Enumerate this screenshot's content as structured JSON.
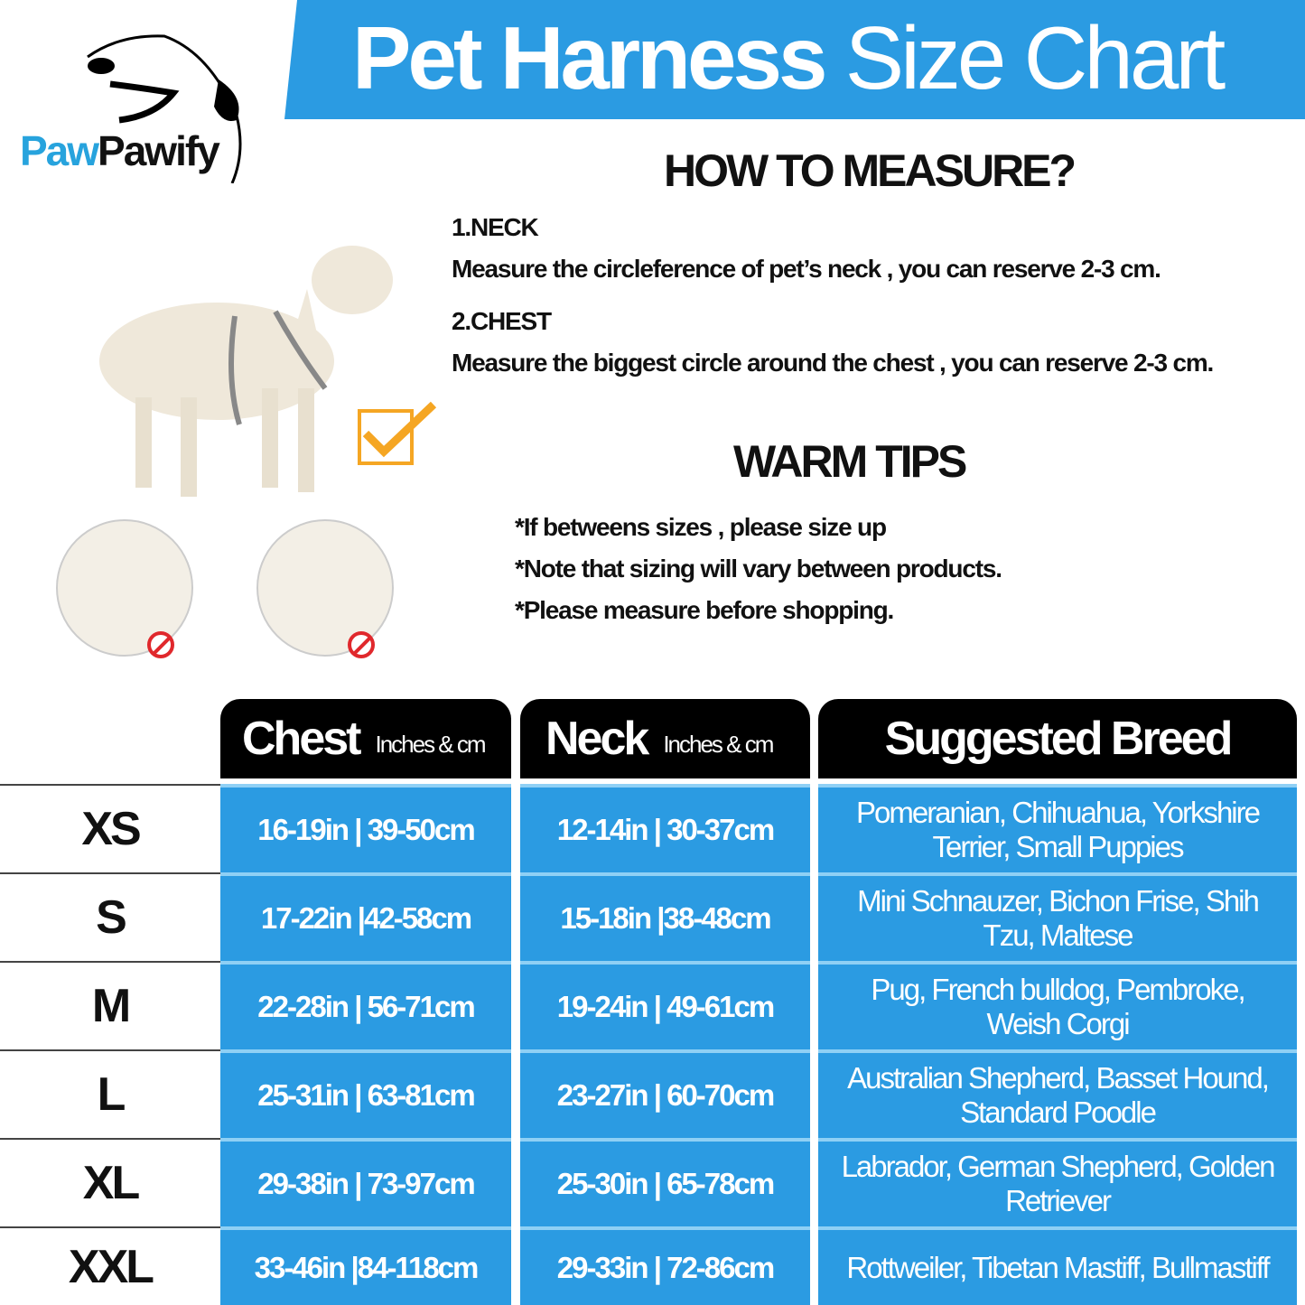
{
  "brand": {
    "logo_text_part1": "Paw",
    "logo_text_part2": "Pawify"
  },
  "title": {
    "bold": "Pet Harness",
    "light": "Size Chart"
  },
  "measure": {
    "heading": "HOW TO MEASURE?",
    "neck_label": "1.NECK",
    "neck_text": "Measure the circleference of pet’s neck , you can reserve 2-3 cm.",
    "chest_label": "2.CHEST",
    "chest_text": "Measure the biggest circle around the chest , you can reserve 2-3 cm."
  },
  "tips": {
    "heading": "WARM TIPS",
    "items": [
      "*If betweens sizes , please size up",
      "*Note that sizing will vary between products.",
      "*Please measure before shopping."
    ]
  },
  "colors": {
    "accent": "#2b9be2",
    "header": "#000000",
    "checkmark": "#f5a623",
    "prohibited": "#e0282c"
  },
  "table": {
    "headers": {
      "chest": "Chest",
      "chest_unit": "Inches & cm",
      "neck": "Neck",
      "neck_unit": "Inches & cm",
      "breed": "Suggested Breed"
    },
    "rows": [
      {
        "size": "XS",
        "chest": "16-19in | 39-50cm",
        "neck": "12-14in | 30-37cm",
        "breed": "Pomeranian, Chihuahua, Yorkshire Terrier, Small Puppies"
      },
      {
        "size": "S",
        "chest": "17-22in |42-58cm",
        "neck": "15-18in |38-48cm",
        "breed": "Mini Schnauzer, Bichon Frise, Shih Tzu, Maltese"
      },
      {
        "size": "M",
        "chest": "22-28in | 56-71cm",
        "neck": "19-24in | 49-61cm",
        "breed": "Pug, French bulldog, Pembroke, Weish Corgi"
      },
      {
        "size": "L",
        "chest": "25-31in | 63-81cm",
        "neck": "23-27in | 60-70cm",
        "breed": "Australian Shepherd, Basset Hound, Standard Poodle"
      },
      {
        "size": "XL",
        "chest": "29-38in | 73-97cm",
        "neck": "25-30in | 65-78cm",
        "breed": "Labrador, German Shepherd, Golden Retriever"
      },
      {
        "size": "XXL",
        "chest": "33-46in |84-118cm",
        "neck": "29-33in | 72-86cm",
        "breed": "Rottweiler, Tibetan Mastiff, Bullmastiff"
      }
    ]
  }
}
